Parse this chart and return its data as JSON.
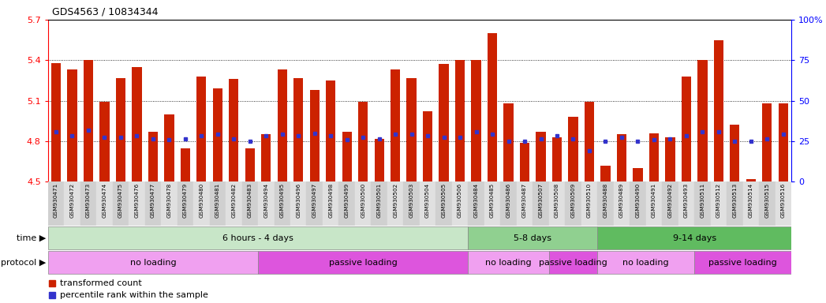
{
  "title": "GDS4563 / 10834344",
  "samples": [
    "GSM930471",
    "GSM930472",
    "GSM930473",
    "GSM930474",
    "GSM930475",
    "GSM930476",
    "GSM930477",
    "GSM930478",
    "GSM930479",
    "GSM930480",
    "GSM930481",
    "GSM930482",
    "GSM930483",
    "GSM930494",
    "GSM930495",
    "GSM930496",
    "GSM930497",
    "GSM930498",
    "GSM930499",
    "GSM930500",
    "GSM930501",
    "GSM930502",
    "GSM930503",
    "GSM930504",
    "GSM930505",
    "GSM930506",
    "GSM930484",
    "GSM930485",
    "GSM930486",
    "GSM930487",
    "GSM930507",
    "GSM930508",
    "GSM930509",
    "GSM930510",
    "GSM930488",
    "GSM930489",
    "GSM930490",
    "GSM930491",
    "GSM930492",
    "GSM930493",
    "GSM930511",
    "GSM930512",
    "GSM930513",
    "GSM930514",
    "GSM930515",
    "GSM930516"
  ],
  "bar_values": [
    5.38,
    5.33,
    5.4,
    5.09,
    5.27,
    5.35,
    4.87,
    5.0,
    4.75,
    5.28,
    5.19,
    5.26,
    4.75,
    4.85,
    5.33,
    5.27,
    5.18,
    5.25,
    4.87,
    5.09,
    4.82,
    5.33,
    5.27,
    5.02,
    5.37,
    5.4,
    5.4,
    5.6,
    5.08,
    4.79,
    4.87,
    4.83,
    4.98,
    5.09,
    4.62,
    4.85,
    4.6,
    4.86,
    4.83,
    5.28,
    5.4,
    5.55,
    4.92,
    4.52,
    5.08,
    5.08
  ],
  "percentile_values": [
    4.87,
    4.84,
    4.88,
    4.83,
    4.83,
    4.84,
    4.82,
    4.81,
    4.82,
    4.84,
    4.85,
    4.82,
    4.8,
    4.84,
    4.85,
    4.84,
    4.86,
    4.84,
    4.81,
    4.83,
    4.82,
    4.85,
    4.85,
    4.84,
    4.83,
    4.83,
    4.87,
    4.85,
    4.8,
    4.8,
    4.82,
    4.84,
    4.82,
    4.73,
    4.8,
    4.83,
    4.8,
    4.81,
    4.82,
    4.84,
    4.87,
    4.87,
    4.8,
    4.8,
    4.82,
    4.85
  ],
  "ylim": [
    4.5,
    5.7
  ],
  "yticks_left": [
    4.5,
    4.8,
    5.1,
    5.4,
    5.7
  ],
  "yticks_right": [
    0,
    25,
    50,
    75,
    100
  ],
  "bar_color": "#cc2200",
  "dot_color": "#3333cc",
  "time_groups": [
    {
      "label": "6 hours - 4 days",
      "start": 0,
      "end": 26,
      "color": "#c8e6c8"
    },
    {
      "label": "5-8 days",
      "start": 26,
      "end": 34,
      "color": "#90d090"
    },
    {
      "label": "9-14 days",
      "start": 34,
      "end": 46,
      "color": "#60bb60"
    }
  ],
  "protocol_groups": [
    {
      "label": "no loading",
      "start": 0,
      "end": 13,
      "color": "#f0a0f0"
    },
    {
      "label": "passive loading",
      "start": 13,
      "end": 26,
      "color": "#dd55dd"
    },
    {
      "label": "no loading",
      "start": 26,
      "end": 31,
      "color": "#f0a0f0"
    },
    {
      "label": "passive loading",
      "start": 31,
      "end": 34,
      "color": "#dd55dd"
    },
    {
      "label": "no loading",
      "start": 34,
      "end": 40,
      "color": "#f0a0f0"
    },
    {
      "label": "passive loading",
      "start": 40,
      "end": 46,
      "color": "#dd55dd"
    }
  ],
  "legend_items": [
    {
      "label": "transformed count",
      "color": "#cc2200"
    },
    {
      "label": "percentile rank within the sample",
      "color": "#3333cc"
    }
  ],
  "xtick_bg_colors": [
    "#d0d0d0",
    "#e0e0e0"
  ]
}
